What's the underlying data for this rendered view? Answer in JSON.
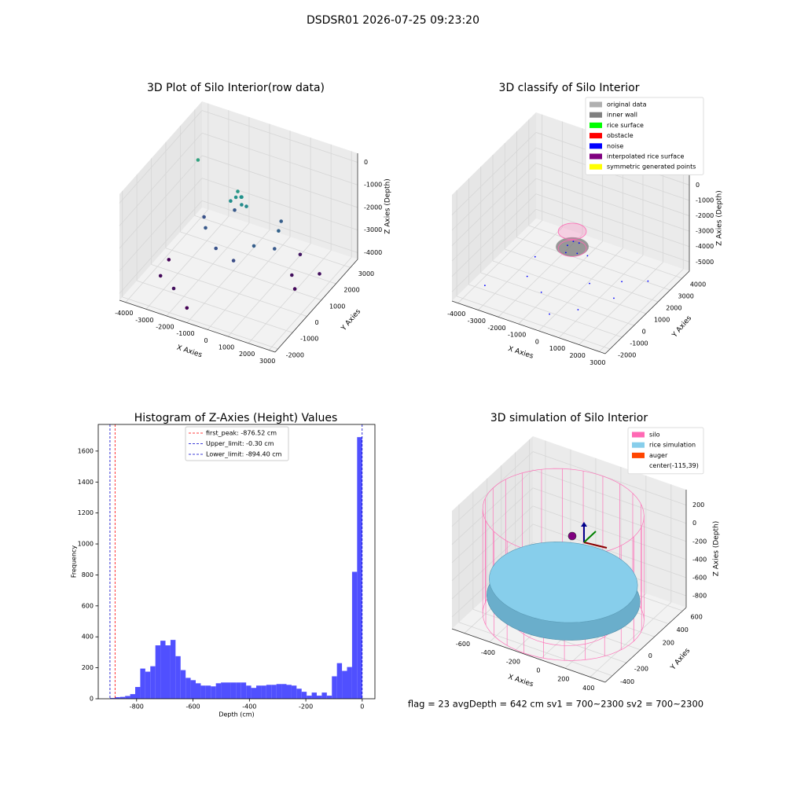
{
  "figure": {
    "title": "DSDSR01 2026-07-25 09:23:20"
  },
  "chart_data": [
    {
      "type": "scatter3d",
      "title": "3D Plot of Silo Interior(row data)",
      "xlabel": "X Axies",
      "ylabel": "Y Axies",
      "zlabel": "Z Axies (Depth)",
      "xlim": [
        -4300,
        3300
      ],
      "ylim": [
        -2200,
        3500
      ],
      "zlim": [
        -4300,
        400
      ],
      "xticks": [
        -4000,
        -3000,
        -2000,
        -1000,
        0,
        1000,
        2000,
        3000
      ],
      "yticks": [
        -2000,
        -1000,
        0,
        1000,
        2000,
        3000
      ],
      "zticks": [
        0,
        -1000,
        -2000,
        -3000,
        -4000
      ],
      "colormap": "viridis",
      "points": {
        "x": [
          -1550,
          -1300,
          -1700,
          -1400,
          -1200,
          -1600,
          -1000,
          -2500,
          -1500,
          0,
          500,
          -2000,
          -500,
          800,
          -3000,
          200,
          -3500,
          -2500,
          -3800,
          1500,
          2000,
          1200,
          -1500,
          2500,
          -4000
        ],
        "y": [
          1950,
          2000,
          1800,
          2100,
          1850,
          2150,
          1900,
          1200,
          500,
          1000,
          2000,
          2500,
          300,
          1300,
          1800,
          2600,
          -500,
          -1000,
          500,
          1500,
          1000,
          2500,
          -1500,
          2000,
          2800
        ],
        "z": [
          -1900,
          -1850,
          -2000,
          -1950,
          -2050,
          -1800,
          -2100,
          -3000,
          -3100,
          -2900,
          -2800,
          -3000,
          -3200,
          -3000,
          -3100,
          -2900,
          -4200,
          -4100,
          -4300,
          -4100,
          -4200,
          -4000,
          -4300,
          -4100,
          -1600
        ]
      }
    },
    {
      "type": "scatter3d",
      "title": "3D classify of Silo Interior",
      "xlabel": "X Axies",
      "ylabel": "Y Axies",
      "zlabel": "Z Axies (Depth)",
      "xlim": [
        -4300,
        3300
      ],
      "ylim": [
        -2400,
        4600
      ],
      "zlim": [
        -5600,
        1300
      ],
      "xticks": [
        -4000,
        -3000,
        -2000,
        -1000,
        0,
        1000,
        2000,
        3000
      ],
      "yticks": [
        -2000,
        -1000,
        0,
        1000,
        2000,
        3000,
        4000
      ],
      "zticks": [
        0,
        -1000,
        -2000,
        -3000,
        -4000,
        -5000
      ],
      "series": [
        {
          "name": "original data",
          "color": "#b0b0b0"
        },
        {
          "name": "inner wall",
          "color": "#808080"
        },
        {
          "name": "rice surface",
          "color": "#00ff00"
        },
        {
          "name": "obstacle",
          "color": "#ff0000"
        },
        {
          "name": "noise",
          "color": "#0000ff",
          "points": {
            "x": [
              -2000,
              -1000,
              500,
              1500,
              2500,
              -500,
              -2500,
              0,
              1000,
              2000,
              -3500,
              -1500,
              300,
              -300,
              100,
              -200
            ],
            "y": [
              0,
              -500,
              1000,
              2000,
              2500,
              2500,
              1500,
              -1500,
              -800,
              500,
              -1000,
              3000,
              300,
              500,
              800,
              200
            ],
            "z": [
              -4800,
              -5000,
              -4900,
              -5100,
              -5000,
              -4700,
              -4900,
              -5200,
              -5000,
              -4800,
              -5300,
              -4600,
              -2500,
              -2400,
              -2300,
              -2600
            ]
          }
        },
        {
          "name": "interpolated rice surface",
          "color": "#800080"
        },
        {
          "name": "symmetric generated points",
          "color": "#ffff00"
        }
      ]
    },
    {
      "type": "histogram",
      "title": "Histogram of Z-Axies (Height) Values",
      "xlabel": "Depth (cm)",
      "ylabel": "Frequency",
      "color": "#5050ff",
      "xlim": [
        -936,
        45
      ],
      "ylim": [
        0,
        1772
      ],
      "xticks": [
        -800,
        -600,
        -400,
        -200,
        0
      ],
      "yticks": [
        0,
        200,
        400,
        600,
        800,
        1000,
        1200,
        1400,
        1600
      ],
      "bins": [
        -894.4,
        -876.52,
        -858.64,
        -840.75,
        -822.87,
        -804.99,
        -787.11,
        -769.23,
        -751.34,
        -733.46,
        -715.58,
        -697.7,
        -679.82,
        -661.93,
        -644.05,
        -626.17,
        -608.29,
        -590.41,
        -572.52,
        -554.64,
        -536.76,
        -518.88,
        -501.0,
        -483.11,
        -465.23,
        -447.35,
        -429.47,
        -411.59,
        -393.7,
        -375.82,
        -357.94,
        -340.06,
        -322.18,
        -304.29,
        -286.41,
        -268.53,
        -250.65,
        -232.77,
        -214.88,
        -197.0,
        -179.12,
        -161.24,
        -143.36,
        -125.47,
        -107.59,
        -89.71,
        -71.83,
        -53.95,
        -36.06,
        -18.18,
        -0.3
      ],
      "values": [
        5,
        10,
        12,
        18,
        30,
        76,
        195,
        175,
        210,
        345,
        375,
        345,
        380,
        275,
        185,
        135,
        120,
        100,
        85,
        85,
        80,
        100,
        105,
        105,
        105,
        105,
        105,
        85,
        70,
        85,
        85,
        90,
        90,
        95,
        95,
        90,
        85,
        65,
        45,
        20,
        40,
        20,
        40,
        20,
        145,
        230,
        180,
        205,
        820,
        1690
      ],
      "lines": [
        {
          "label": "first_peak: -876.52 cm",
          "value": -876.52,
          "color": "#ff0000"
        },
        {
          "label": "Upper_limit: -0.30 cm",
          "value": -0.3,
          "color": "#0000cc"
        },
        {
          "label": "Lower_limit: -894.40 cm",
          "value": -894.4,
          "color": "#0000cc"
        }
      ]
    },
    {
      "type": "surface3d",
      "title": "3D simulation of Silo Interior",
      "xlabel": "X Axies",
      "ylabel": "Y Axies",
      "zlabel": "Z Axies (Depth)",
      "xlim": [
        -700,
        520
      ],
      "ylim": [
        -500,
        650
      ],
      "zlim": [
        -930,
        370
      ],
      "xticks": [
        -600,
        -400,
        -200,
        0,
        200,
        400
      ],
      "yticks": [
        -400,
        -200,
        0,
        200,
        400,
        600
      ],
      "zticks": [
        200,
        0,
        -200,
        -400,
        -600,
        -800
      ],
      "series": [
        {
          "name": "silo",
          "color": "#ff69b4"
        },
        {
          "name": "rice simulation",
          "color": "#87ceeb"
        },
        {
          "name": "auger",
          "color": "#ff4500"
        }
      ],
      "legend_note": "center(-115,39)",
      "annotation": "flag = 23  avgDepth = 642 cm  sv1 = 700~2300  sv2 = 700~2300"
    }
  ]
}
